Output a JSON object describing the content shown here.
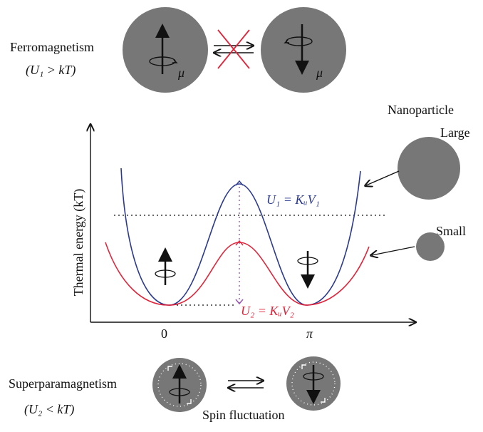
{
  "ferro": {
    "title": "Ferromagnetism",
    "condition": "(U₁ > kT)",
    "moment_symbol": "μ"
  },
  "nanoparticle": {
    "title": "Nanoparticle",
    "large": "Large",
    "small": "Small"
  },
  "plot": {
    "ylabel": "Thermal energy (kT)",
    "xticks": [
      "0",
      "π"
    ],
    "barrier_large": "U₁ = KᵤV₁",
    "barrier_small": "U₂ = KᵤV₂"
  },
  "super": {
    "title": "Superparamagnetism",
    "condition": "(U₂ < kT)",
    "caption": "Spin fluctuation"
  },
  "colors": {
    "large_curve": "#2b3a8f",
    "small_curve": "#e0243a",
    "particle": "#777777",
    "cross": "#e0243a"
  }
}
